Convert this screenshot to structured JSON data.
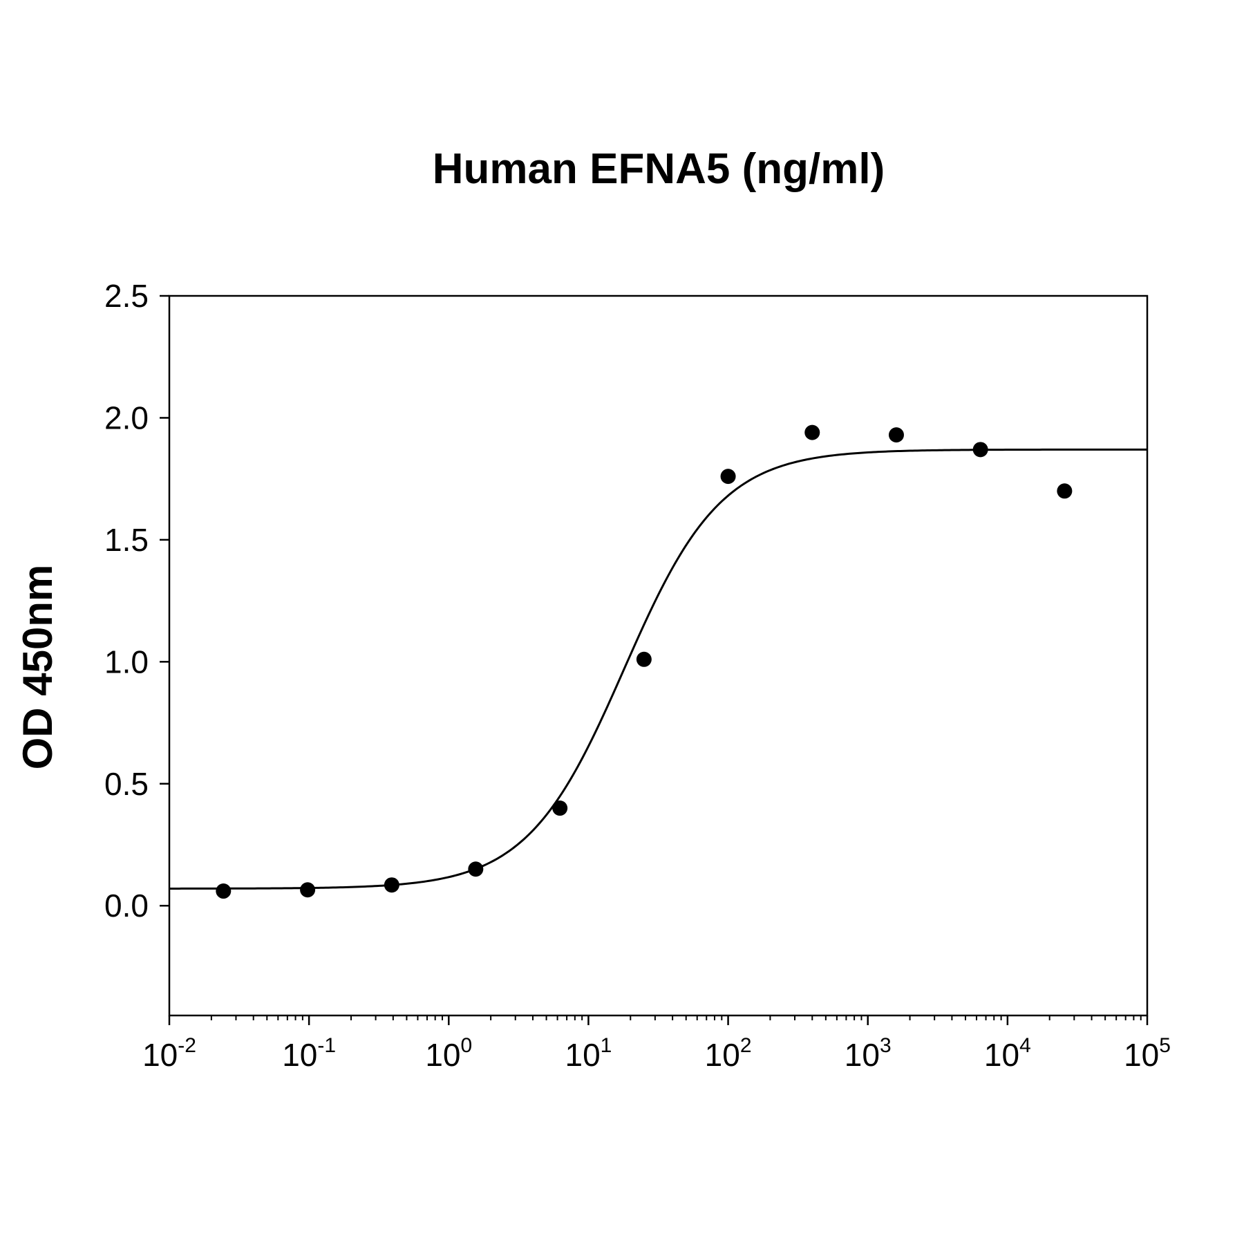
{
  "chart_data": {
    "type": "scatter",
    "title": "Human EFNA5 (ng/ml)",
    "xlabel": "",
    "ylabel": "OD 450nm",
    "x_scale": "log",
    "xlim": [
      0.01,
      100000
    ],
    "ylim": [
      -0.45,
      2.5
    ],
    "y_ticks": [
      "0.0",
      "0.5",
      "1.0",
      "1.5",
      "2.0",
      "2.5"
    ],
    "x_ticks": [
      {
        "base": "10",
        "exp": "-2"
      },
      {
        "base": "10",
        "exp": "-1"
      },
      {
        "base": "10",
        "exp": "0"
      },
      {
        "base": "10",
        "exp": "1"
      },
      {
        "base": "10",
        "exp": "2"
      },
      {
        "base": "10",
        "exp": "3"
      },
      {
        "base": "10",
        "exp": "4"
      },
      {
        "base": "10",
        "exp": "5"
      }
    ],
    "grid": false,
    "legend": "none",
    "series": [
      {
        "type": "scatter",
        "x": [
          0.0244,
          0.0977,
          0.391,
          1.56,
          6.25,
          25,
          100,
          400,
          1600,
          6400,
          25600
        ],
        "y": [
          0.06,
          0.065,
          0.085,
          0.15,
          0.4,
          1.01,
          1.76,
          1.94,
          1.93,
          1.87,
          1.7
        ]
      },
      {
        "type": "line",
        "fit": "4PL",
        "bottom": 0.07,
        "top": 1.87,
        "ec50": 18,
        "hill": 1.25
      }
    ],
    "colors": {
      "marker": "#000000",
      "line": "#000000",
      "axis": "#000000"
    }
  }
}
